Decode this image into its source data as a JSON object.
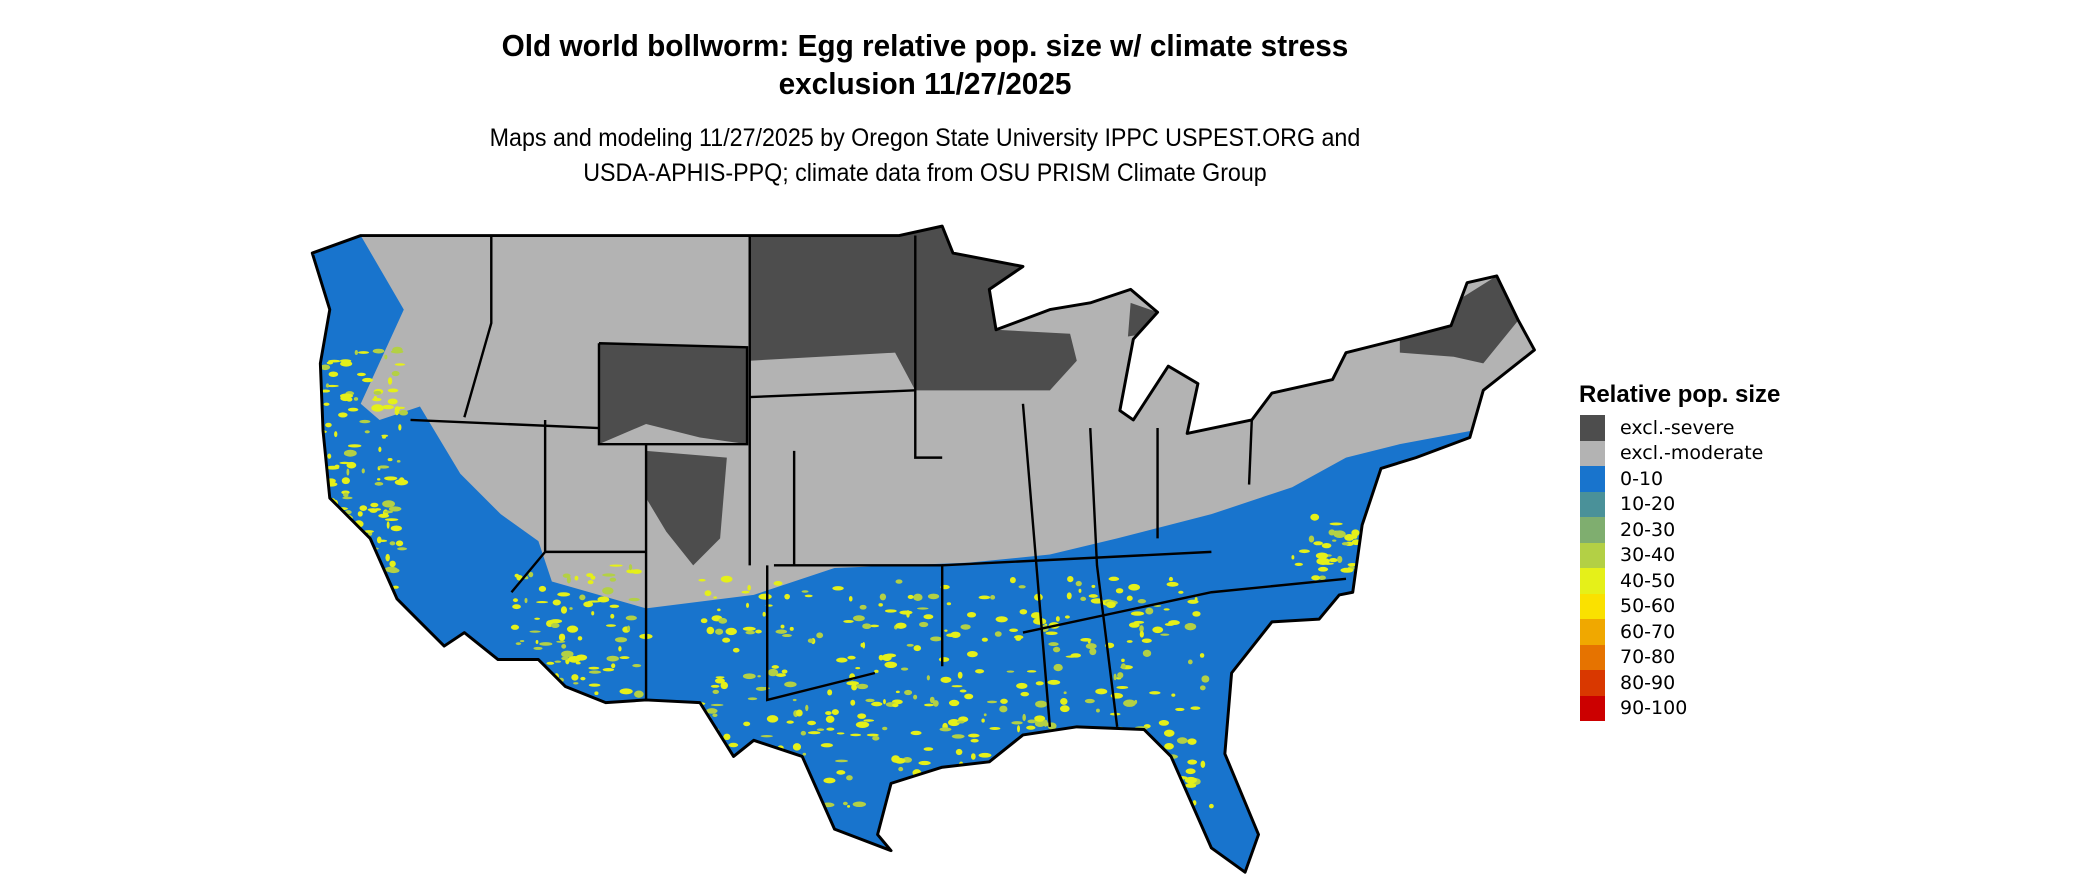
{
  "title": {
    "line1": "Old world bollworm: Egg relative pop. size w/ climate stress",
    "line2": "exclusion 11/27/2025"
  },
  "subtitle": {
    "line1": "Maps and modeling 11/27/2025 by Oregon State University IPPC USPEST.ORG and",
    "line2": "USDA-APHIS-PPQ; climate data from OSU PRISM Climate Group"
  },
  "map": {
    "region": "Contiguous United States",
    "border_color": "#000000",
    "dominant_classes": [
      "excl.-moderate",
      "excl.-severe",
      "0-10",
      "40-50"
    ]
  },
  "legend": {
    "title": "Relative pop. size",
    "items": [
      {
        "label": "excl.-severe",
        "color": "#4d4d4d"
      },
      {
        "label": "excl.-moderate",
        "color": "#b3b3b3"
      },
      {
        "label": "0-10",
        "color": "#1874cd"
      },
      {
        "label": "10-20",
        "color": "#4a9199"
      },
      {
        "label": "20-30",
        "color": "#7fae6f"
      },
      {
        "label": "30-40",
        "color": "#b3d045"
      },
      {
        "label": "40-50",
        "color": "#e5f019"
      },
      {
        "label": "50-60",
        "color": "#fae100"
      },
      {
        "label": "60-70",
        "color": "#f0a800"
      },
      {
        "label": "70-80",
        "color": "#e67300"
      },
      {
        "label": "80-90",
        "color": "#d93800"
      },
      {
        "label": "90-100",
        "color": "#cc0000"
      }
    ]
  }
}
